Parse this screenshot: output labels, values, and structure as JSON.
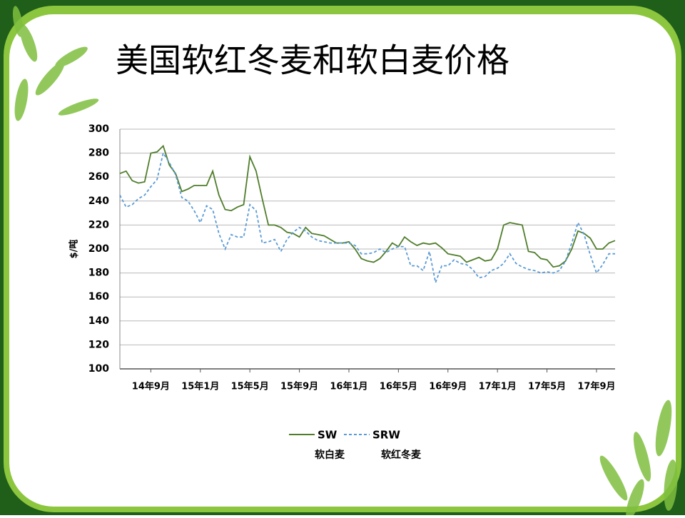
{
  "chart_data": {
    "type": "line",
    "title": "美国软红冬麦和软白麦价格",
    "y_label": "$/吨",
    "categories": [
      null,
      null,
      null,
      null,
      null,
      "14年9月",
      null,
      null,
      null,
      null,
      null,
      null,
      null,
      "15年1月",
      null,
      null,
      null,
      null,
      null,
      null,
      null,
      "15年5月",
      null,
      null,
      null,
      null,
      null,
      null,
      null,
      "15年9月",
      null,
      null,
      null,
      null,
      null,
      null,
      null,
      "16年1月",
      null,
      null,
      null,
      null,
      null,
      null,
      null,
      "16年5月",
      null,
      null,
      null,
      null,
      null,
      null,
      null,
      "16年9月",
      null,
      null,
      null,
      null,
      null,
      null,
      null,
      "17年1月",
      null,
      null,
      null,
      null,
      null,
      null,
      null,
      "17年5月",
      null,
      null,
      null,
      null,
      null,
      null,
      null,
      "17年9月",
      null,
      null,
      null
    ],
    "series": [
      {
        "name": "SW",
        "color": "#4f7d2a",
        "dash": false,
        "values": [
          263,
          265,
          257,
          255,
          256,
          280,
          281,
          286,
          270,
          263,
          248,
          250,
          253,
          253,
          253,
          265,
          245,
          233,
          232,
          235,
          237,
          277,
          265,
          242,
          220,
          220,
          218,
          214,
          213,
          210,
          218,
          213,
          212,
          211,
          208,
          205,
          205,
          206,
          200,
          192,
          190,
          189,
          192,
          198,
          205,
          202,
          210,
          206,
          203,
          205,
          204,
          205,
          201,
          196,
          195,
          194,
          189,
          191,
          193,
          190,
          191,
          200,
          220,
          222,
          221,
          220,
          198,
          197,
          192,
          191,
          185,
          186,
          190,
          200,
          215,
          213,
          209,
          200,
          200,
          205,
          207
        ]
      },
      {
        "name": "SRW",
        "color": "#5b9bd5",
        "dash": true,
        "values": [
          245,
          235,
          237,
          242,
          245,
          252,
          258,
          280,
          272,
          262,
          243,
          240,
          232,
          222,
          236,
          233,
          213,
          200,
          212,
          210,
          210,
          237,
          232,
          205,
          206,
          208,
          198,
          208,
          214,
          218,
          215,
          210,
          207,
          206,
          205,
          205,
          205,
          205,
          203,
          196,
          196,
          197,
          200,
          197,
          200,
          202,
          202,
          186,
          186,
          182,
          198,
          172,
          186,
          186,
          191,
          188,
          187,
          183,
          176,
          177,
          182,
          184,
          188,
          196,
          188,
          185,
          183,
          182,
          180,
          181,
          180,
          182,
          190,
          205,
          222,
          212,
          195,
          180,
          187,
          196,
          196
        ]
      }
    ],
    "legend_notes": [
      "软白麦",
      "软红冬麦"
    ],
    "ylim": [
      100,
      300
    ],
    "yticks": [
      100,
      120,
      140,
      160,
      180,
      200,
      220,
      240,
      260,
      280,
      300
    ],
    "grid": true
  }
}
